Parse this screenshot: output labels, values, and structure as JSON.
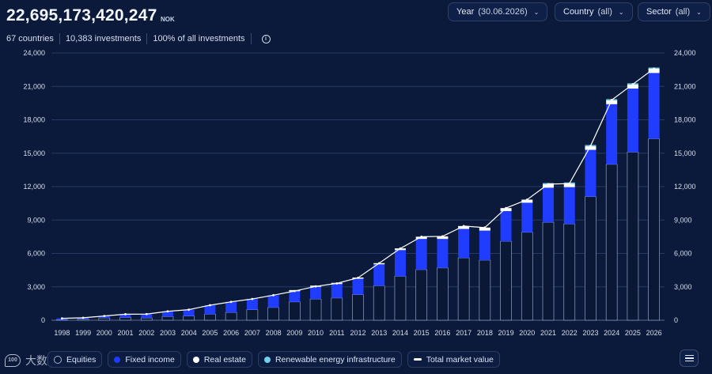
{
  "header": {
    "total_value": "22,695,173,420,247",
    "currency": "NOK",
    "stats": [
      "67 countries",
      "10,383 investments",
      "100% of all investments"
    ],
    "info_icon": "info-icon"
  },
  "filters": [
    {
      "label": "Year",
      "value": "(30.06.2026)"
    },
    {
      "label": "Country",
      "value": "(all)"
    },
    {
      "label": "Sector",
      "value": "(all)"
    }
  ],
  "legend": [
    {
      "label": "Equities",
      "color": "#0a1836"
    },
    {
      "label": "Fixed income",
      "color": "#1f3cff"
    },
    {
      "label": "Real estate",
      "color": "#ffffff"
    },
    {
      "label": "Renewable energy infrastructure",
      "color": "#6fd0f0"
    },
    {
      "label": "Total market value",
      "color": "#ffffff"
    }
  ],
  "watermark": {
    "logo": "100",
    "text": "大数跨境"
  },
  "menu_icon": "hamburger-menu-icon",
  "chart_data": {
    "type": "bar",
    "stacked": true,
    "categories": [
      "1998",
      "1999",
      "2000",
      "2001",
      "2002",
      "2003",
      "2004",
      "2005",
      "2006",
      "2007",
      "2008",
      "2009",
      "2010",
      "2011",
      "2012",
      "2013",
      "2014",
      "2015",
      "2016",
      "2017",
      "2018",
      "2019",
      "2020",
      "2021",
      "2022",
      "2023",
      "2024",
      "2025",
      "2026"
    ],
    "series": [
      {
        "name": "Equities",
        "color": "#0a1836",
        "values": [
          40,
          100,
          200,
          250,
          200,
          330,
          380,
          550,
          700,
          950,
          1150,
          1650,
          1900,
          2000,
          2300,
          3100,
          3950,
          4550,
          4700,
          5600,
          5400,
          7100,
          7900,
          8800,
          8650,
          11100,
          14000,
          15100,
          16300
        ]
      },
      {
        "name": "Fixed income",
        "color": "#1f3cff",
        "values": [
          130,
          120,
          200,
          290,
          350,
          470,
          570,
          800,
          950,
          960,
          1100,
          950,
          1100,
          1250,
          1430,
          1920,
          2350,
          2750,
          2600,
          2600,
          2650,
          2700,
          2650,
          3100,
          3300,
          4200,
          5400,
          5700,
          5900
        ]
      },
      {
        "name": "Real estate",
        "color": "#ffffff",
        "values": [
          0,
          0,
          0,
          0,
          0,
          0,
          0,
          0,
          0,
          0,
          0,
          20,
          40,
          60,
          80,
          100,
          150,
          200,
          230,
          260,
          270,
          270,
          280,
          310,
          310,
          330,
          350,
          370,
          380
        ]
      },
      {
        "name": "Renewable energy infrastructure",
        "color": "#6fd0f0",
        "values": [
          0,
          0,
          0,
          0,
          0,
          0,
          0,
          0,
          0,
          0,
          0,
          0,
          0,
          0,
          0,
          0,
          0,
          0,
          0,
          0,
          0,
          0,
          0,
          10,
          10,
          15,
          20,
          20,
          20
        ]
      }
    ],
    "line": {
      "name": "Total market value",
      "color": "#ffffff",
      "values": [
        170,
        220,
        380,
        540,
        550,
        800,
        950,
        1350,
        1650,
        1910,
        2250,
        2620,
        3040,
        3310,
        3810,
        5120,
        6440,
        7500,
        7530,
        8460,
        8320,
        10070,
        10830,
        12220,
        12270,
        15645,
        19770,
        21190,
        22600
      ]
    },
    "ylim": [
      0,
      24000
    ],
    "yticks": [
      0,
      3000,
      6000,
      9000,
      12000,
      15000,
      18000,
      21000,
      24000
    ],
    "ytick_labels": [
      "0",
      "3,000",
      "6,000",
      "9,000",
      "12,000",
      "15,000",
      "18,000",
      "21,000",
      "24,000"
    ],
    "grid": true
  }
}
